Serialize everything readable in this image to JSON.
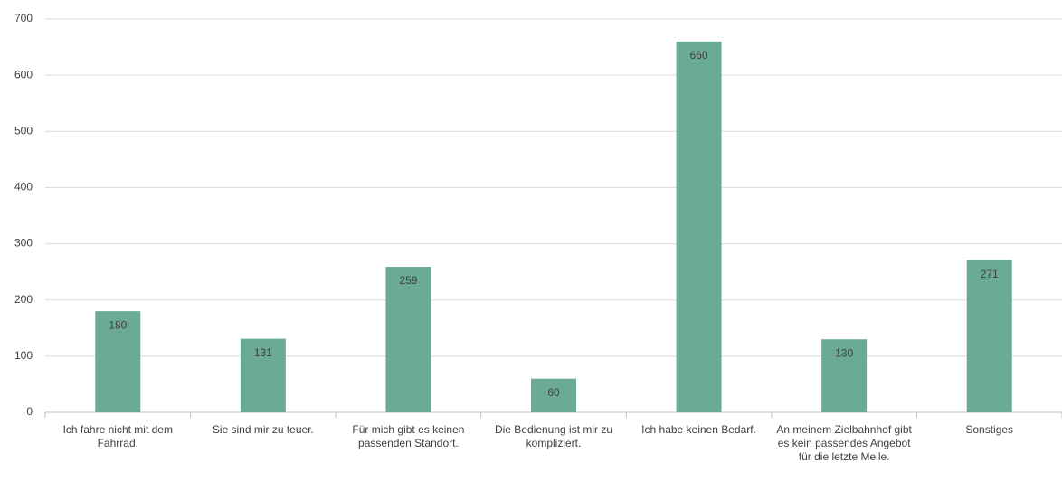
{
  "chart_data": {
    "type": "bar",
    "categories": [
      "Ich fahre nicht mit dem Fahrrad.",
      "Sie sind mir zu teuer.",
      "Für mich gibt es keinen passenden Standort.",
      "Die Bedienung ist mir zu kompliziert.",
      "Ich habe keinen Bedarf.",
      "An meinem Zielbahnhof gibt es kein passendes Angebot für die letzte Meile.",
      "Sonstiges"
    ],
    "values": [
      180,
      131,
      259,
      60,
      660,
      130,
      271
    ],
    "color": "#6aaa96",
    "ylim": [
      0,
      700
    ],
    "yticks": [
      0,
      100,
      200,
      300,
      400,
      500,
      600,
      700
    ],
    "grid": true
  }
}
